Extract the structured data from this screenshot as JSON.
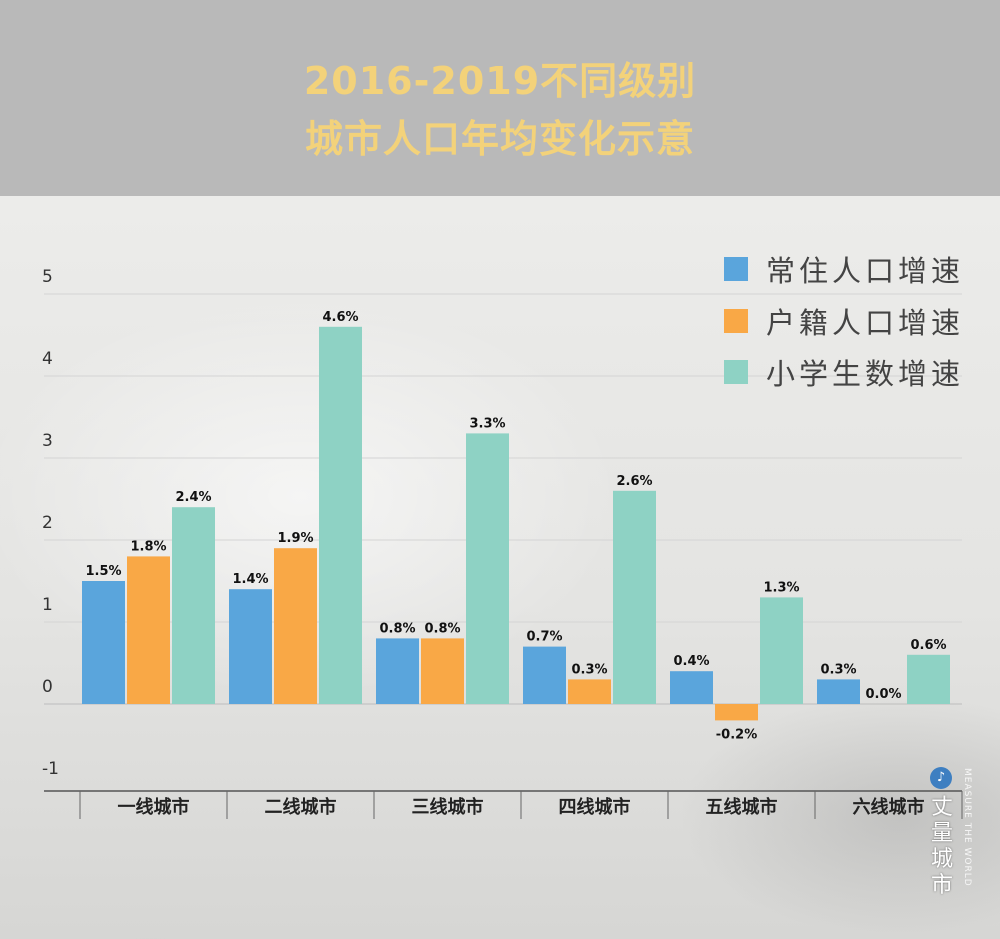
{
  "title": {
    "line1": "2016-2019不同级别",
    "line2": "城市人口年均变化示意"
  },
  "legend": [
    {
      "label": "常住人口增速",
      "color": "#5aa5dc"
    },
    {
      "label": "户籍人口增速",
      "color": "#f9a846"
    },
    {
      "label": "小学生数增速",
      "color": "#8ed2c4"
    }
  ],
  "chart_data": {
    "type": "bar",
    "categories": [
      "一线城市",
      "二线城市",
      "三线城市",
      "四线城市",
      "五线城市",
      "六线城市"
    ],
    "series": [
      {
        "name": "常住人口增速",
        "color": "#5aa5dc",
        "values": [
          1.5,
          1.4,
          0.8,
          0.7,
          0.4,
          0.3
        ],
        "labels": [
          "1.5%",
          "1.4%",
          "0.8%",
          "0.7%",
          "0.4%",
          "0.3%"
        ]
      },
      {
        "name": "户籍人口增速",
        "color": "#f9a846",
        "values": [
          1.8,
          1.9,
          0.8,
          0.3,
          -0.2,
          0.0
        ],
        "labels": [
          "1.8%",
          "1.9%",
          "0.8%",
          "0.3%",
          "-0.2%",
          "0.0%"
        ]
      },
      {
        "name": "小学生数增速",
        "color": "#8ed2c4",
        "values": [
          2.4,
          4.6,
          3.3,
          2.6,
          1.3,
          0.6
        ],
        "labels": [
          "2.4%",
          "4.6%",
          "3.3%",
          "2.6%",
          "1.3%",
          "0.6%"
        ]
      }
    ],
    "yticks": [
      "5",
      "4",
      "3",
      "2",
      "1",
      "0",
      "-1"
    ],
    "ylim": [
      -1,
      5
    ],
    "grid": true,
    "legend_position": "top-right"
  },
  "watermark": {
    "text": "丈量城市",
    "subtext": "MEASURE THE WORLD"
  }
}
